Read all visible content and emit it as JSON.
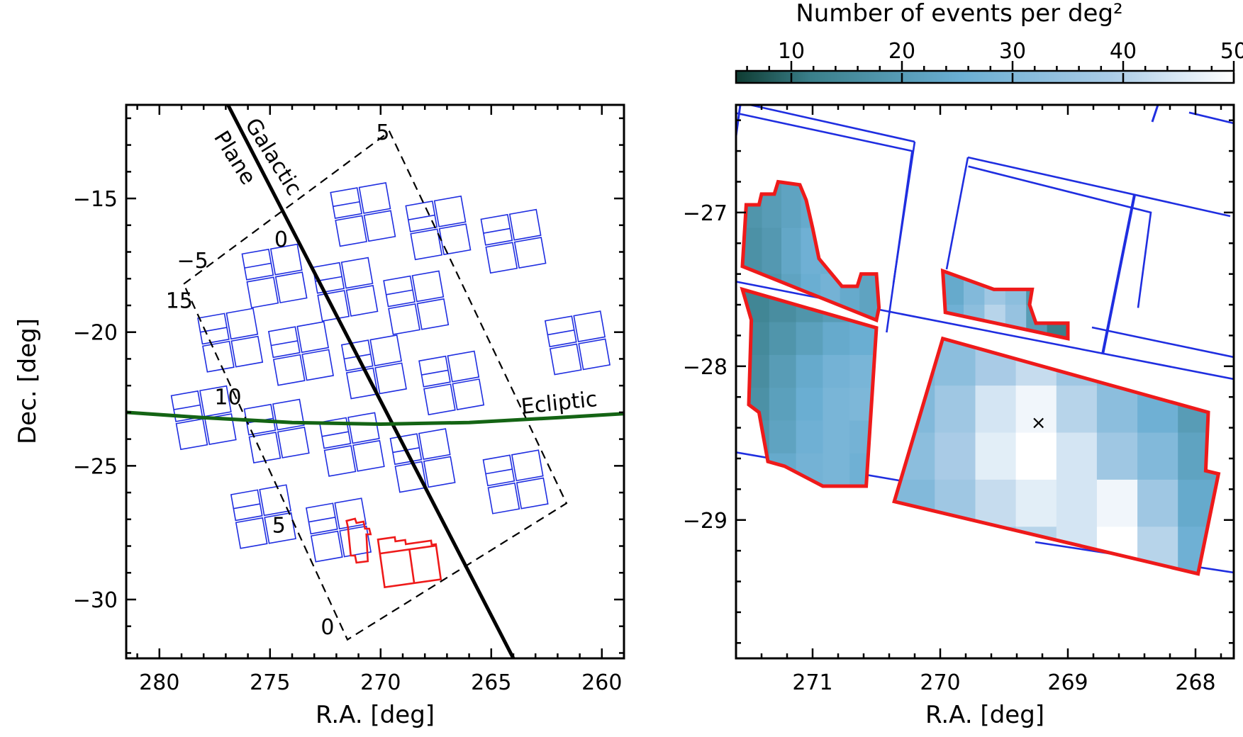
{
  "chart_data": [
    {
      "type": "scatter",
      "title": "",
      "xlabel": "R.A. [deg]",
      "ylabel": "Dec. [deg]",
      "xlim": [
        281.5,
        259
      ],
      "ylim": [
        -32.2,
        -11.5
      ],
      "xticks": [
        280,
        275,
        270,
        265,
        260
      ],
      "yticks": [
        -15,
        -20,
        -25,
        -30
      ],
      "xtick_labels": [
        "280",
        "275",
        "270",
        "265",
        "260"
      ],
      "ytick_labels": [
        "−15",
        "−20",
        "−25",
        "−30"
      ],
      "grid": false,
      "lines": [
        {
          "name": "Galactic Plane",
          "label_line1": "Galactic",
          "label_line2": "Plane",
          "color": "#000000",
          "points": [
            [
              276.9,
              -11.5
            ],
            [
              264.0,
              -32.2
            ]
          ]
        },
        {
          "name": "Ecliptic",
          "label": "Ecliptic",
          "color": "#146414",
          "points": [
            [
              281.5,
              -23.0
            ],
            [
              278,
              -23.2
            ],
            [
              274,
              -23.38
            ],
            [
              270,
              -23.44
            ],
            [
              266,
              -23.38
            ],
            [
              262,
              -23.2
            ],
            [
              259,
              -23.05
            ]
          ]
        }
      ],
      "box": {
        "corners": [
          [
            278.9,
            -18.2
          ],
          [
            269.6,
            -12.5
          ],
          [
            261.6,
            -26.4
          ],
          [
            271.5,
            -31.5
          ]
        ],
        "edge_labels": [
          {
            "text": "5",
            "at": [
              269.9,
              -12.8
            ]
          },
          {
            "text": "0",
            "at": [
              274.5,
              -16.8
            ]
          },
          {
            "text": "−5",
            "at": [
              278.5,
              -17.6
            ]
          },
          {
            "text": "15",
            "at": [
              279.1,
              -19.1
            ]
          },
          {
            "text": "10",
            "at": [
              276.9,
              -22.7
            ]
          },
          {
            "text": "5",
            "at": [
              274.6,
              -27.5
            ]
          },
          {
            "text": "0",
            "at": [
              272.4,
              -31.3
            ]
          }
        ]
      },
      "fields": [
        {
          "center": [
            270.8,
            -15.6
          ],
          "split": true
        },
        {
          "center": [
            267.4,
            -16.1
          ],
          "split": true
        },
        {
          "center": [
            264.0,
            -16.6
          ],
          "split": true
        },
        {
          "center": [
            274.8,
            -17.9
          ],
          "split": true
        },
        {
          "center": [
            271.6,
            -18.4
          ],
          "split": true
        },
        {
          "center": [
            268.4,
            -18.9
          ],
          "split": true
        },
        {
          "center": [
            276.8,
            -20.3
          ],
          "split": true
        },
        {
          "center": [
            273.6,
            -20.8
          ],
          "split": true
        },
        {
          "center": [
            270.3,
            -21.3
          ],
          "split": true
        },
        {
          "center": [
            266.8,
            -21.9
          ],
          "split": true
        },
        {
          "center": [
            261.1,
            -20.4
          ],
          "split": true
        },
        {
          "center": [
            278.0,
            -23.2
          ],
          "split": true
        },
        {
          "center": [
            274.7,
            -23.7
          ],
          "split": true
        },
        {
          "center": [
            271.3,
            -24.2
          ],
          "split": true
        },
        {
          "center": [
            268.1,
            -24.8
          ],
          "split": true
        },
        {
          "center": [
            263.9,
            -25.6
          ],
          "split": true
        },
        {
          "center": [
            275.3,
            -26.9
          ],
          "split": true
        },
        {
          "center": [
            271.9,
            -27.4
          ],
          "split": true
        }
      ],
      "red_fields": [
        {
          "center": [
            270.9,
            -27.8
          ],
          "split": false
        },
        {
          "center": [
            268.7,
            -28.5
          ],
          "split": true
        }
      ]
    },
    {
      "type": "heatmap",
      "title": "",
      "xlabel": "R.A. [deg]",
      "ylabel": "",
      "xlim": [
        271.6,
        267.7
      ],
      "ylim": [
        -29.9,
        -26.3
      ],
      "xticks": [
        271,
        270,
        269,
        268
      ],
      "yticks": [
        -27,
        -28,
        -29
      ],
      "xtick_labels": [
        "271",
        "270",
        "269",
        "268"
      ],
      "ytick_labels": [
        "−27",
        "−28",
        "−29"
      ],
      "grid": false,
      "colorbar": {
        "label": "Number of events per deg²",
        "range": [
          5,
          50
        ],
        "ticks": [
          10,
          20,
          30,
          40,
          50
        ],
        "tick_labels": [
          "10",
          "20",
          "30",
          "40",
          "50"
        ],
        "colors": [
          "#0f3c32",
          "#3a7f8a",
          "#6aaed2",
          "#a9cbe6",
          "#ffffff"
        ]
      },
      "marker": {
        "symbol": "×",
        "ra": 269.23,
        "dec": -28.37
      },
      "regions": [
        {
          "name": "left-upper",
          "polygon": [
            [
              271.55,
              -27.35
            ],
            [
              271.52,
              -26.95
            ],
            [
              271.42,
              -26.95
            ],
            [
              271.4,
              -26.88
            ],
            [
              271.3,
              -26.88
            ],
            [
              271.27,
              -26.8
            ],
            [
              271.1,
              -26.82
            ],
            [
              271.05,
              -26.92
            ],
            [
              271.0,
              -27.1
            ],
            [
              270.95,
              -27.3
            ],
            [
              270.85,
              -27.4
            ],
            [
              270.77,
              -27.48
            ],
            [
              270.65,
              -27.48
            ],
            [
              270.62,
              -27.4
            ],
            [
              270.5,
              -27.4
            ],
            [
              270.48,
              -27.62
            ],
            [
              270.5,
              -27.7
            ],
            [
              271.55,
              -27.35
            ]
          ],
          "density": [
            [
              18,
              20,
              22,
              24,
              21,
              17,
              15
            ],
            [
              17,
              19,
              23,
              26,
              25,
              20,
              16
            ],
            [
              15,
              18,
              22,
              25,
              27,
              24,
              22
            ]
          ]
        },
        {
          "name": "left-lower",
          "polygon": [
            [
              271.55,
              -27.5
            ],
            [
              270.5,
              -27.75
            ],
            [
              270.58,
              -28.78
            ],
            [
              270.92,
              -28.78
            ],
            [
              271.22,
              -28.65
            ],
            [
              271.35,
              -28.62
            ],
            [
              271.42,
              -28.3
            ],
            [
              271.5,
              -28.25
            ],
            [
              271.48,
              -27.7
            ],
            [
              271.55,
              -27.5
            ]
          ],
          "density": [
            [
              14,
              16,
              18,
              20,
              22
            ],
            [
              15,
              18,
              21,
              24,
              25
            ],
            [
              16,
              20,
              24,
              27,
              28
            ],
            [
              17,
              21,
              25,
              28,
              29
            ],
            [
              18,
              22,
              26,
              28,
              27
            ],
            [
              20,
              24,
              27,
              28,
              26
            ]
          ]
        },
        {
          "name": "right-upper",
          "polygon": [
            [
              269.98,
              -27.38
            ],
            [
              269.58,
              -27.5
            ],
            [
              269.28,
              -27.5
            ],
            [
              269.3,
              -27.6
            ],
            [
              269.25,
              -27.72
            ],
            [
              269.0,
              -27.72
            ],
            [
              269.0,
              -27.82
            ],
            [
              269.96,
              -27.65
            ],
            [
              269.98,
              -27.38
            ]
          ],
          "density": [
            [
              24,
              30,
              36,
              32,
              18,
              8
            ],
            [
              26,
              32,
              40,
              34,
              20,
              12
            ]
          ]
        },
        {
          "name": "right-lower",
          "polygon": [
            [
              269.98,
              -27.82
            ],
            [
              267.9,
              -28.3
            ],
            [
              267.92,
              -28.68
            ],
            [
              267.82,
              -28.7
            ],
            [
              267.98,
              -29.35
            ],
            [
              270.36,
              -28.88
            ],
            [
              269.98,
              -27.82
            ]
          ],
          "density": [
            [
              28,
              32,
              38,
              42,
              36,
              28,
              22,
              18
            ],
            [
              30,
              36,
              44,
              48,
              40,
              32,
              26,
              20
            ],
            [
              32,
              38,
              46,
              50,
              44,
              36,
              30,
              22
            ],
            [
              30,
              36,
              42,
              46,
              44,
              48,
              36,
              24
            ],
            [
              28,
              32,
              36,
              40,
              44,
              50,
              40,
              26
            ]
          ]
        }
      ],
      "fields": [
        {
          "polygon": [
            [
              271.62,
              -26.35
            ],
            [
              270.22,
              -26.6
            ],
            [
              270.42,
              -27.78
            ]
          ]
        },
        {
          "polygon": [
            [
              269.78,
              -26.7
            ],
            [
              268.35,
              -27.0
            ],
            [
              268.45,
              -27.62
            ]
          ]
        },
        {
          "polygon": [
            [
              268.05,
              -26.35
            ],
            [
              267.7,
              -26.42
            ]
          ]
        }
      ]
    }
  ]
}
